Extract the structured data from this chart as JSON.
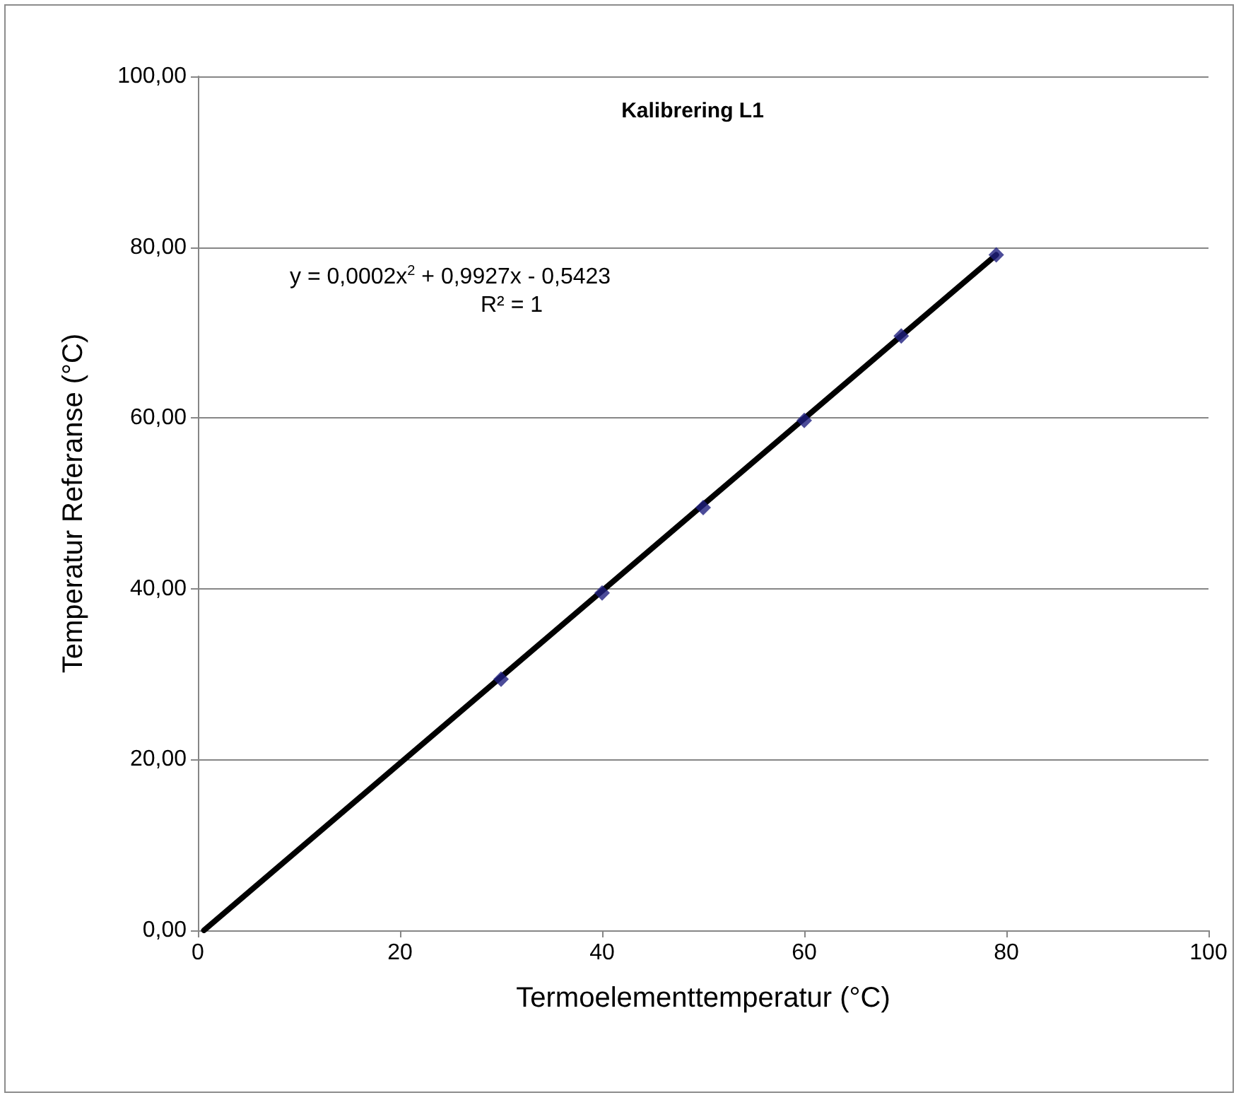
{
  "chart_data": {
    "type": "scatter",
    "title": "Kalibrering L1",
    "xlabel": "Termoelementtemperatur (°C)",
    "ylabel": "Temperatur Referanse (°C)",
    "annotations": [
      "y = 0,0002x$^{2}$ + 0,9927x - 0,5423",
      "R² = 1"
    ],
    "series": [
      {
        "color": "#1f1f80",
        "marker": "diamond",
        "x": [
          30,
          40,
          50,
          60,
          69.6,
          79
        ],
        "values": [
          29.4,
          39.5,
          49.5,
          59.7,
          69.6,
          79.1
        ]
      },
      {
        "type": "line",
        "color": "#000000",
        "marker": "none",
        "x": [
          0.6,
          79
        ],
        "values": [
          0,
          79.1
        ]
      }
    ],
    "xlim": [
      0,
      100
    ],
    "xticks": [
      0,
      20,
      40,
      60,
      80,
      100
    ],
    "ylim": [
      0,
      100
    ],
    "yticks": [
      {
        "value": 0,
        "label": "0,00"
      },
      {
        "value": 20,
        "label": "20,00"
      },
      {
        "value": 40,
        "label": "40,00"
      },
      {
        "value": 60,
        "label": "60,00"
      },
      {
        "value": 80,
        "label": "80,00"
      },
      {
        "value": 100,
        "label": "100,00"
      }
    ],
    "grid": "y"
  }
}
